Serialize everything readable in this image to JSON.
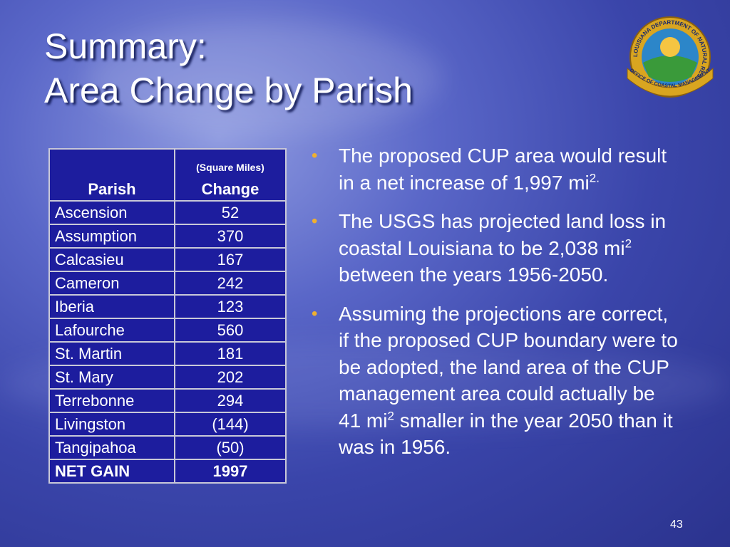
{
  "title": [
    "Summary:",
    "Area Change by Parish"
  ],
  "table": {
    "header": {
      "parish": "Parish",
      "unit": "(Square Miles)",
      "change": "Change"
    },
    "rows": [
      [
        "Ascension",
        "52"
      ],
      [
        "Assumption",
        "370"
      ],
      [
        "Calcasieu",
        "167"
      ],
      [
        "Cameron",
        "242"
      ],
      [
        "Iberia",
        "123"
      ],
      [
        "Lafourche",
        "560"
      ],
      [
        "St. Martin",
        "181"
      ],
      [
        "St. Mary",
        "202"
      ],
      [
        "Terrebonne",
        "294"
      ],
      [
        "Livingston",
        "(144)"
      ],
      [
        "Tangipahoa",
        "(50)"
      ]
    ],
    "total": [
      "NET GAIN",
      "1997"
    ]
  },
  "bullets": [
    [
      "The proposed CUP area would result in a net increase of 1,997 mi",
      "2."
    ],
    [
      "The USGS has projected land loss in coastal Louisiana to be 2,038 mi",
      "2",
      " between the years 1956-2050."
    ],
    [
      "Assuming the projections are correct,  if the proposed CUP boundary were to be adopted, the land area of the CUP management area could actually be 41 mi",
      "2",
      " smaller in the year 2050 than it was in 1956."
    ]
  ],
  "logo": {
    "ring_text": "LOUISIANA DEPARTMENT OF NATURAL RESOURCES",
    "banner_text": "OFFICE OF COASTAL MANAGEMENT"
  },
  "page_number": "43"
}
